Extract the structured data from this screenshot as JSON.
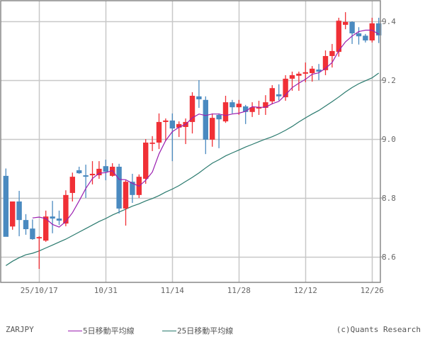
{
  "chart_data": {
    "type": "candlestick",
    "title": "",
    "symbol": "ZARJPY",
    "xlabel": "",
    "ylabel": "",
    "ylim": [
      8.53,
      9.48
    ],
    "y_ticks": [
      9.4,
      9.2,
      9.0,
      8.8,
      8.6
    ],
    "y_tick_labels": [
      "9.4",
      "9.2",
      "9.0",
      "8.8",
      "8.6"
    ],
    "x_tick_labels": [
      "25/10/17",
      "10/31",
      "11/14",
      "11/28",
      "12/12",
      "12/26"
    ],
    "x_tick_index": [
      5,
      15,
      25,
      35,
      45,
      55
    ],
    "grid": true,
    "legend": [
      {
        "label": "5日移動平均線",
        "color": "#9b1fb0"
      },
      {
        "label": "25日移動平均線",
        "color": "#2a7a6e"
      }
    ],
    "colors": {
      "up": "#f03036",
      "down": "#4a8ac0",
      "grid": "#c8c8c8",
      "frame": "#888888"
    },
    "candles": [
      {
        "o": 8.875,
        "h": 8.9,
        "l": 8.67,
        "c": 8.668
      },
      {
        "o": 8.703,
        "h": 8.776,
        "l": 8.692,
        "c": 8.788
      },
      {
        "o": 8.788,
        "h": 8.824,
        "l": 8.67,
        "c": 8.725
      },
      {
        "o": 8.725,
        "h": 8.745,
        "l": 8.675,
        "c": 8.694
      },
      {
        "o": 8.696,
        "h": 8.727,
        "l": 8.658,
        "c": 8.66
      },
      {
        "o": 8.663,
        "h": 8.67,
        "l": 8.559,
        "c": 8.667
      },
      {
        "o": 8.655,
        "h": 8.757,
        "l": 8.651,
        "c": 8.737
      },
      {
        "o": 8.737,
        "h": 8.79,
        "l": 8.68,
        "c": 8.73
      },
      {
        "o": 8.73,
        "h": 8.757,
        "l": 8.708,
        "c": 8.723
      },
      {
        "o": 8.713,
        "h": 8.826,
        "l": 8.704,
        "c": 8.81
      },
      {
        "o": 8.817,
        "h": 8.886,
        "l": 8.788,
        "c": 8.872
      },
      {
        "o": 8.894,
        "h": 8.906,
        "l": 8.882,
        "c": 8.884
      },
      {
        "o": 8.877,
        "h": 8.913,
        "l": 8.8,
        "c": 8.872
      },
      {
        "o": 8.877,
        "h": 8.925,
        "l": 8.846,
        "c": 8.882
      },
      {
        "o": 8.877,
        "h": 8.925,
        "l": 8.865,
        "c": 8.899
      },
      {
        "o": 8.908,
        "h": 8.93,
        "l": 8.86,
        "c": 8.889
      },
      {
        "o": 8.875,
        "h": 8.918,
        "l": 8.872,
        "c": 8.906
      },
      {
        "o": 8.906,
        "h": 8.916,
        "l": 8.747,
        "c": 8.764
      },
      {
        "o": 8.764,
        "h": 8.86,
        "l": 8.706,
        "c": 8.855
      },
      {
        "o": 8.855,
        "h": 8.882,
        "l": 8.783,
        "c": 8.81
      },
      {
        "o": 8.81,
        "h": 8.88,
        "l": 8.8,
        "c": 8.872
      },
      {
        "o": 8.865,
        "h": 9.0,
        "l": 8.848,
        "c": 8.988
      },
      {
        "o": 8.986,
        "h": 9.01,
        "l": 8.959,
        "c": 8.988
      },
      {
        "o": 8.988,
        "h": 9.087,
        "l": 8.966,
        "c": 9.058
      },
      {
        "o": 9.058,
        "h": 9.07,
        "l": 8.993,
        "c": 9.063
      },
      {
        "o": 9.063,
        "h": 9.087,
        "l": 8.925,
        "c": 9.036
      },
      {
        "o": 9.039,
        "h": 9.06,
        "l": 9.007,
        "c": 9.051
      },
      {
        "o": 9.041,
        "h": 9.07,
        "l": 8.983,
        "c": 9.058
      },
      {
        "o": 9.058,
        "h": 9.159,
        "l": 9.019,
        "c": 9.147
      },
      {
        "o": 9.145,
        "h": 9.2,
        "l": 9.106,
        "c": 9.135
      },
      {
        "o": 9.133,
        "h": 9.145,
        "l": 8.949,
        "c": 8.998
      },
      {
        "o": 8.998,
        "h": 9.087,
        "l": 8.974,
        "c": 9.072
      },
      {
        "o": 9.082,
        "h": 9.087,
        "l": 8.969,
        "c": 9.067
      },
      {
        "o": 9.06,
        "h": 9.147,
        "l": 9.055,
        "c": 9.125
      },
      {
        "o": 9.125,
        "h": 9.133,
        "l": 9.087,
        "c": 9.108
      },
      {
        "o": 9.108,
        "h": 9.133,
        "l": 9.082,
        "c": 9.12
      },
      {
        "o": 9.111,
        "h": 9.116,
        "l": 9.051,
        "c": 9.092
      },
      {
        "o": 9.092,
        "h": 9.125,
        "l": 9.075,
        "c": 9.108
      },
      {
        "o": 9.106,
        "h": 9.13,
        "l": 9.082,
        "c": 9.108
      },
      {
        "o": 9.106,
        "h": 9.149,
        "l": 9.082,
        "c": 9.125
      },
      {
        "o": 9.128,
        "h": 9.183,
        "l": 9.118,
        "c": 9.173
      },
      {
        "o": 9.152,
        "h": 9.186,
        "l": 9.131,
        "c": 9.145
      },
      {
        "o": 9.142,
        "h": 9.217,
        "l": 9.13,
        "c": 9.205
      },
      {
        "o": 9.205,
        "h": 9.229,
        "l": 9.164,
        "c": 9.217
      },
      {
        "o": 9.215,
        "h": 9.229,
        "l": 9.164,
        "c": 9.222
      },
      {
        "o": 9.222,
        "h": 9.26,
        "l": 9.193,
        "c": 9.227
      },
      {
        "o": 9.224,
        "h": 9.248,
        "l": 9.195,
        "c": 9.239
      },
      {
        "o": 9.236,
        "h": 9.255,
        "l": 9.2,
        "c": 9.229
      },
      {
        "o": 9.234,
        "h": 9.301,
        "l": 9.217,
        "c": 9.282
      },
      {
        "o": 9.282,
        "h": 9.323,
        "l": 9.243,
        "c": 9.299
      },
      {
        "o": 9.296,
        "h": 9.412,
        "l": 9.28,
        "c": 9.402
      },
      {
        "o": 9.388,
        "h": 9.431,
        "l": 9.373,
        "c": 9.398
      },
      {
        "o": 9.398,
        "h": 9.4,
        "l": 9.323,
        "c": 9.359
      },
      {
        "o": 9.359,
        "h": 9.38,
        "l": 9.321,
        "c": 9.349
      },
      {
        "o": 9.351,
        "h": 9.357,
        "l": 9.328,
        "c": 9.335
      },
      {
        "o": 9.335,
        "h": 9.412,
        "l": 9.328,
        "c": 9.393
      },
      {
        "o": 9.393,
        "h": 9.412,
        "l": 9.326,
        "c": 9.352
      }
    ],
    "ma5": [
      null,
      null,
      null,
      null,
      8.732,
      8.735,
      8.73,
      8.71,
      8.701,
      8.72,
      8.75,
      8.79,
      8.832,
      8.866,
      8.884,
      8.886,
      8.893,
      8.863,
      8.862,
      8.85,
      8.84,
      8.86,
      8.888,
      8.95,
      8.995,
      9.025,
      9.04,
      9.05,
      9.072,
      9.085,
      9.08,
      9.085,
      9.085,
      9.08,
      9.085,
      9.088,
      9.094,
      9.11,
      9.108,
      9.108,
      9.12,
      9.128,
      9.15,
      9.175,
      9.19,
      9.203,
      9.22,
      9.225,
      9.24,
      9.26,
      9.3,
      9.33,
      9.35,
      9.365,
      9.37,
      9.37,
      9.356
    ],
    "ma25": [
      8.57,
      8.585,
      8.597,
      8.607,
      8.612,
      8.62,
      8.63,
      8.64,
      8.65,
      8.66,
      8.672,
      8.684,
      8.696,
      8.708,
      8.72,
      8.73,
      8.742,
      8.752,
      8.762,
      8.772,
      8.78,
      8.79,
      8.798,
      8.808,
      8.82,
      8.83,
      8.842,
      8.856,
      8.87,
      8.885,
      8.902,
      8.918,
      8.93,
      8.943,
      8.953,
      8.963,
      8.973,
      8.982,
      8.991,
      9.0,
      9.008,
      9.018,
      9.03,
      9.043,
      9.058,
      9.072,
      9.085,
      9.097,
      9.112,
      9.127,
      9.143,
      9.16,
      9.175,
      9.188,
      9.198,
      9.208,
      9.224
    ]
  },
  "footer": {
    "symbol": "ZARJPY",
    "legend_ma5": "5日移動平均線",
    "legend_ma25": "25日移動平均線",
    "copyright": "(c)Quants Research"
  }
}
